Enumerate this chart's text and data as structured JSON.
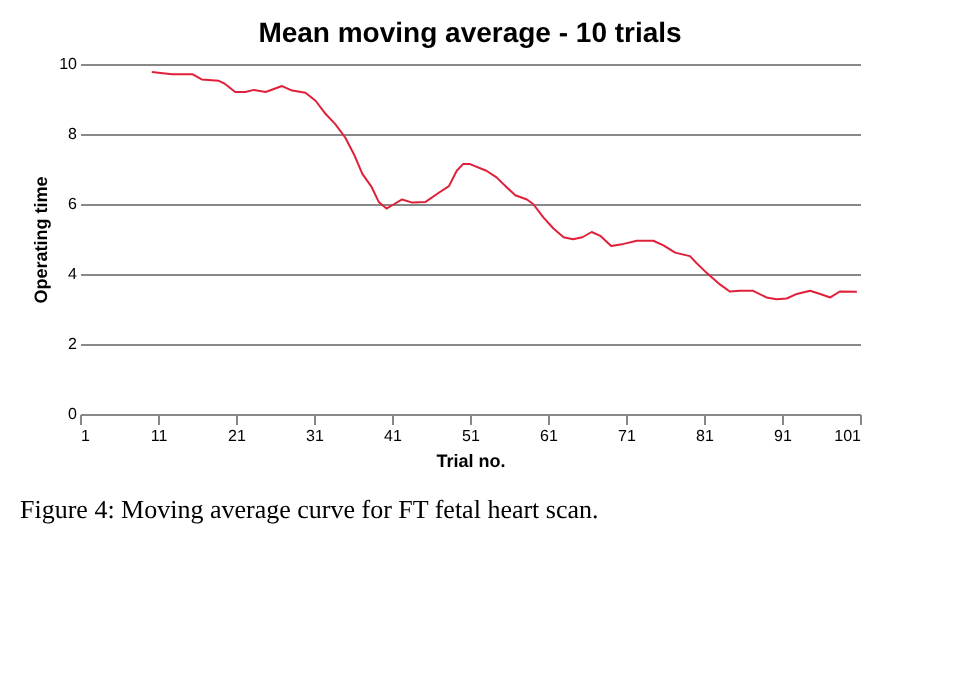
{
  "chart_data": {
    "type": "line",
    "title": "Mean moving average - 10 trials",
    "xlabel": "Trial no.",
    "ylabel": "Operating  time",
    "x": [
      10.2,
      12.8,
      15.4,
      16.6,
      18.8,
      19.6,
      20.9,
      22.2,
      23.3,
      24.8,
      26.9,
      28.2,
      29.9,
      31.2,
      32.5,
      33.7,
      35,
      36.1,
      37.2,
      38.4,
      39.3,
      40.3,
      41.3,
      42.3,
      43.6,
      45.3,
      47,
      48.3,
      49.3,
      50.1,
      51,
      53.1,
      54.4,
      55.7,
      56.8,
      58.3,
      59.1,
      60.4,
      61.7,
      63,
      64.2,
      65.4,
      66.6,
      67.7,
      69.1,
      70.7,
      72.4,
      74.5,
      75.8,
      77.3,
      79.2,
      80,
      81.3,
      83,
      84.3,
      85.6,
      87.3,
      89,
      90.3,
      91.6,
      92.9,
      94.6,
      95.9,
      97.2,
      98.4,
      100.6
    ],
    "series": [
      {
        "color": "#e0203a",
        "values": [
          9.77,
          9.71,
          9.71,
          9.56,
          9.52,
          9.43,
          9.2,
          9.2,
          9.26,
          9.2,
          9.37,
          9.24,
          9.18,
          8.95,
          8.57,
          8.29,
          7.9,
          7.43,
          6.86,
          6.48,
          6.06,
          5.87,
          6.0,
          6.13,
          6.04,
          6.06,
          6.32,
          6.51,
          6.95,
          7.14,
          7.14,
          6.95,
          6.76,
          6.48,
          6.25,
          6.13,
          6.0,
          5.62,
          5.3,
          5.05,
          4.99,
          5.05,
          5.2,
          5.09,
          4.8,
          4.86,
          4.95,
          4.95,
          4.82,
          4.61,
          4.51,
          4.32,
          4.04,
          3.71,
          3.5,
          3.52,
          3.52,
          3.33,
          3.28,
          3.3,
          3.43,
          3.52,
          3.43,
          3.33,
          3.5,
          3.49
        ]
      }
    ],
    "xlim": [
      1,
      101
    ],
    "xticks": [
      1,
      11,
      21,
      31,
      41,
      51,
      61,
      71,
      81,
      91,
      101
    ],
    "ylim": [
      0,
      10
    ],
    "yticks": [
      0,
      2,
      4,
      6,
      8,
      10
    ],
    "grid": "y",
    "marker": "none",
    "line_style": "solid",
    "annotations": [
      "Figure 4: Moving average curve for FT fetal heart scan."
    ]
  }
}
